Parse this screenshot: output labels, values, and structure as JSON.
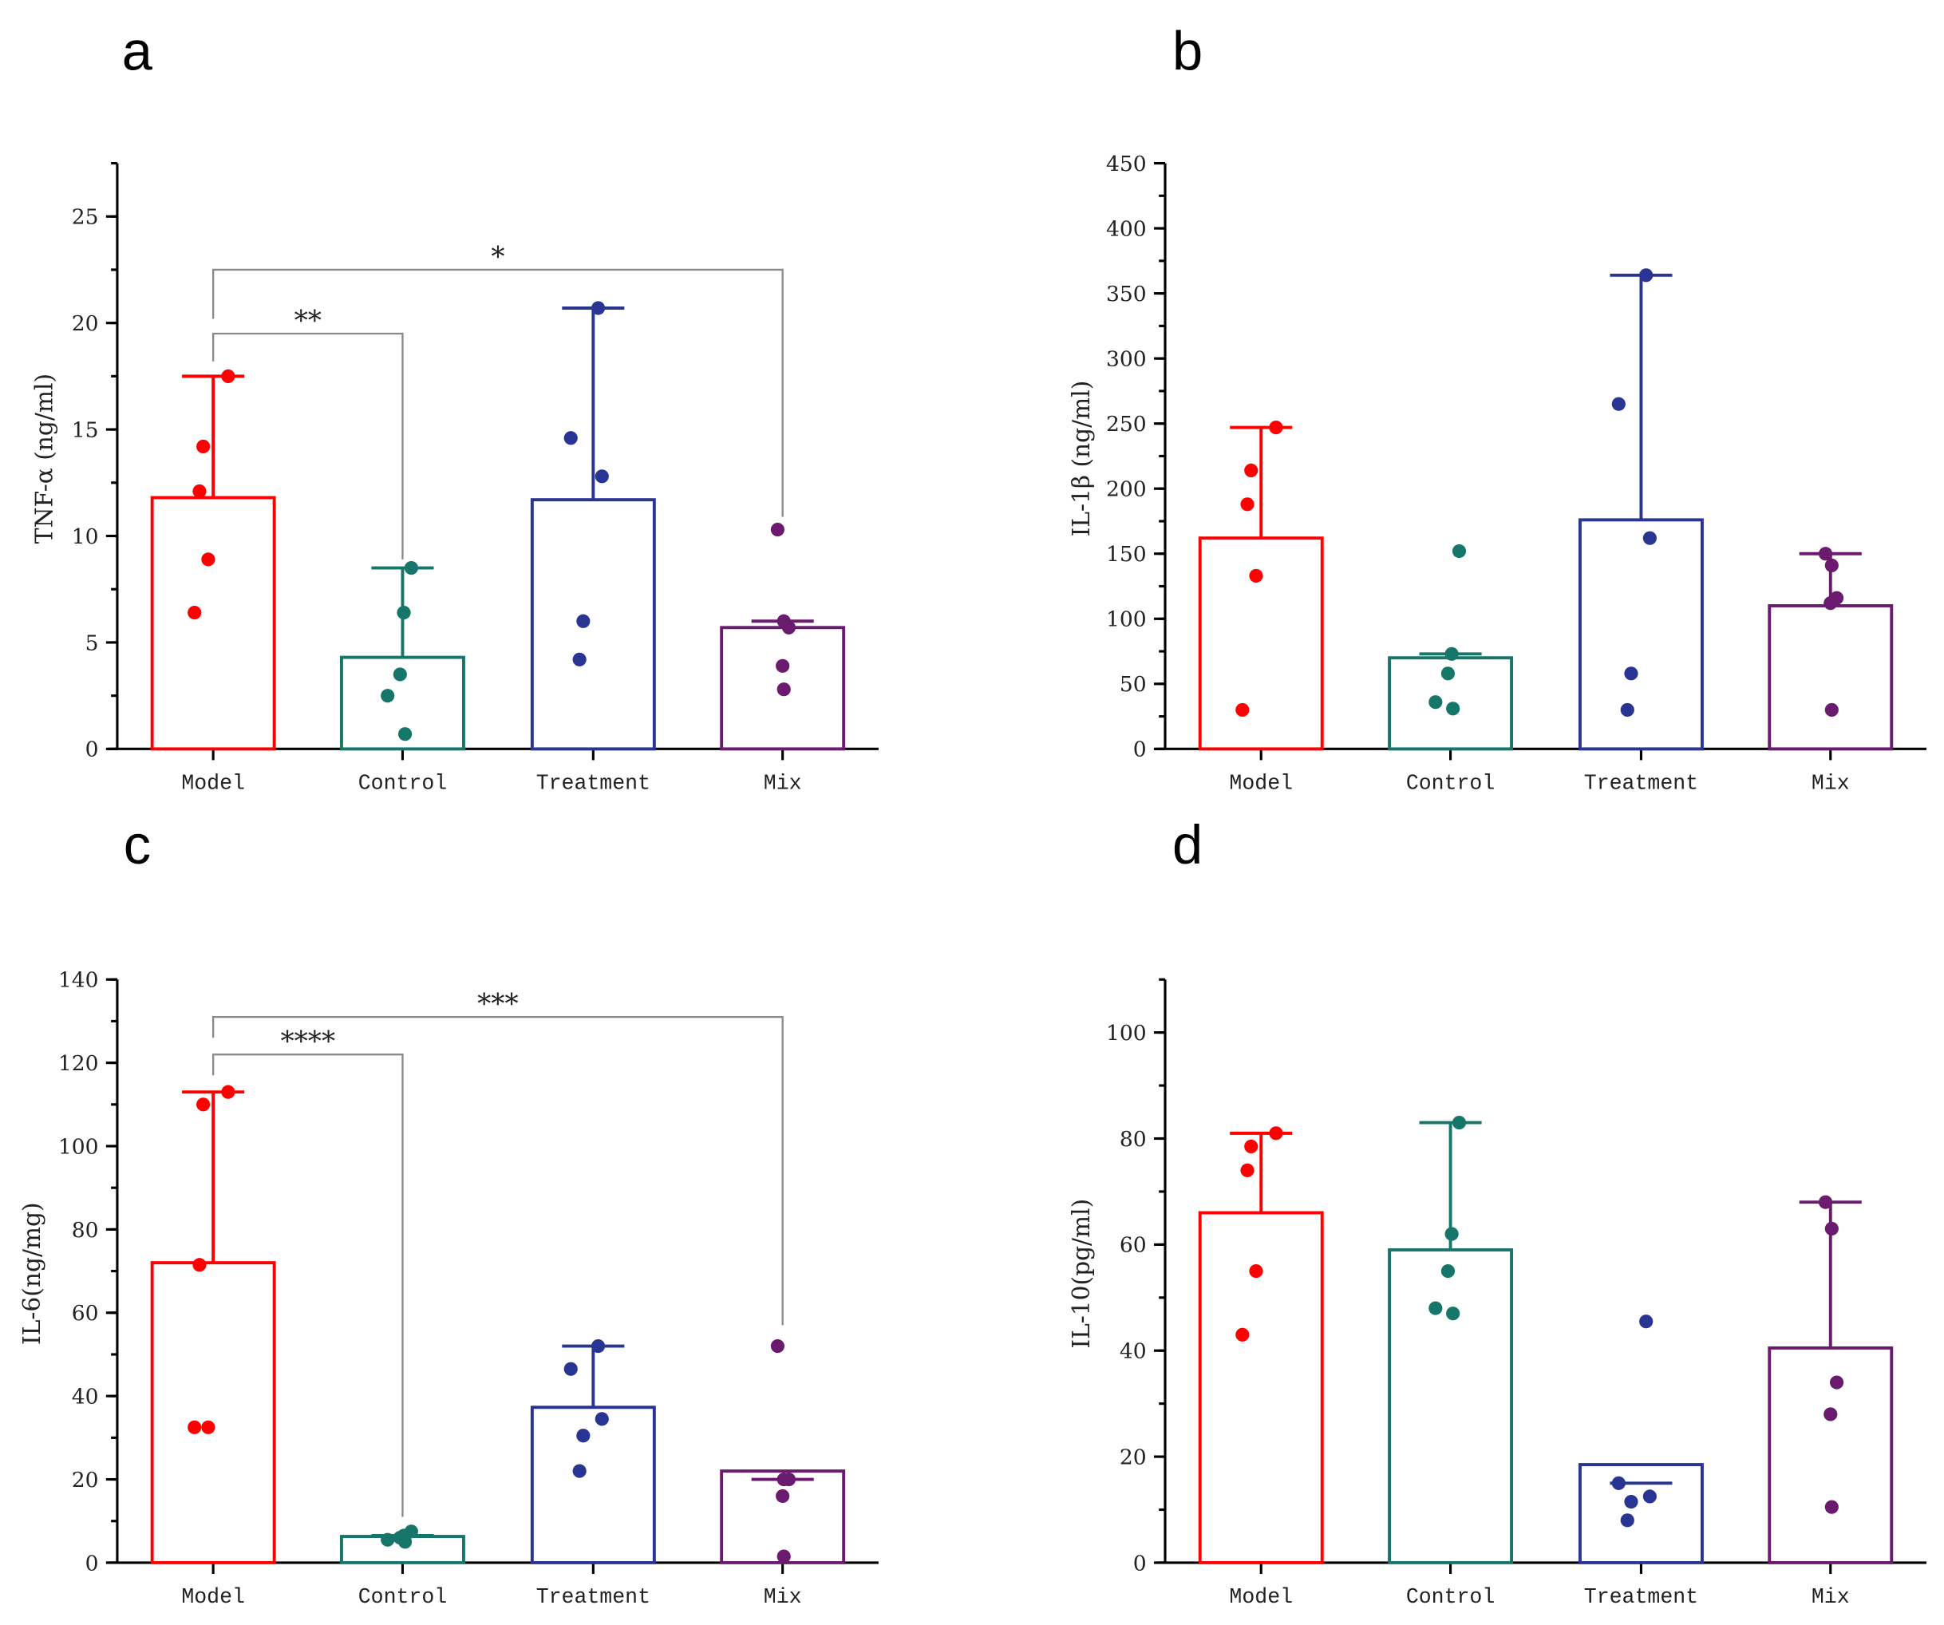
{
  "colors": {
    "Model": "#ff0000",
    "Control": "#17766a",
    "Treatment": "#283593",
    "Mix": "#6a1b6e",
    "bracket": "#8a8a8a"
  },
  "chart_data": [
    {
      "panel": "a",
      "type": "bar",
      "ylabel": "TNF-α (ng/ml)",
      "ylim": [
        0,
        27.5
      ],
      "yticks": [
        0,
        5,
        10,
        15,
        20,
        25
      ],
      "minor_step": 2.5,
      "categories": [
        "Model",
        "Control",
        "Treatment",
        "Mix"
      ],
      "means": [
        11.8,
        4.3,
        11.7,
        5.7
      ],
      "error_top": [
        17.5,
        8.5,
        20.7,
        6.0
      ],
      "points": [
        [
          17.5,
          14.2,
          12.1,
          8.9,
          6.4
        ],
        [
          8.5,
          6.4,
          3.5,
          2.5,
          0.7
        ],
        [
          20.7,
          14.6,
          12.8,
          6.0,
          4.2
        ],
        [
          10.3,
          6.0,
          5.7,
          3.9,
          2.8
        ]
      ],
      "significance": [
        {
          "from": "Model",
          "to": "Control",
          "label": "**",
          "level": 19.5,
          "left_end": 18.2,
          "right_end": 8.9
        },
        {
          "from": "Model",
          "to": "Mix",
          "label": "*",
          "level": 22.5,
          "left_end": 20.2,
          "right_end": 10.9
        }
      ]
    },
    {
      "panel": "b",
      "type": "bar",
      "ylabel": "IL-1β (ng/ml)",
      "ylim": [
        0,
        450
      ],
      "yticks": [
        0,
        50,
        100,
        150,
        200,
        250,
        300,
        350,
        400,
        450
      ],
      "minor_step": 25,
      "categories": [
        "Model",
        "Control",
        "Treatment",
        "Mix"
      ],
      "means": [
        162,
        70,
        176,
        110
      ],
      "error_top": [
        247,
        73,
        364,
        150
      ],
      "points": [
        [
          247,
          214,
          188,
          133,
          30
        ],
        [
          152,
          73,
          58,
          36,
          31
        ],
        [
          364,
          265,
          162,
          58,
          30
        ],
        [
          150,
          141,
          116,
          112,
          30
        ]
      ],
      "significance": []
    },
    {
      "panel": "c",
      "type": "bar",
      "ylabel": "IL-6(ng/mg)",
      "ylim": [
        0,
        140
      ],
      "yticks": [
        0,
        20,
        40,
        60,
        80,
        100,
        120,
        140
      ],
      "minor_step": 10,
      "categories": [
        "Model",
        "Control",
        "Treatment",
        "Mix"
      ],
      "means": [
        72,
        6.3,
        37.3,
        22
      ],
      "error_top": [
        113,
        6.5,
        52,
        20
      ],
      "points": [
        [
          113,
          110,
          71.5,
          32.5,
          32.5
        ],
        [
          7.5,
          6.5,
          6,
          5.5,
          5
        ],
        [
          52,
          46.5,
          34.5,
          30.5,
          22
        ],
        [
          52,
          20,
          20,
          16,
          1.5
        ]
      ],
      "significance": [
        {
          "from": "Model",
          "to": "Control",
          "label": "****",
          "level": 122,
          "left_end": 117,
          "right_end": 11
        },
        {
          "from": "Model",
          "to": "Mix",
          "label": "***",
          "level": 131,
          "left_end": 126,
          "right_end": 57
        }
      ]
    },
    {
      "panel": "d",
      "type": "bar",
      "ylabel": "IL-10(pg/ml)",
      "ylim": [
        0,
        110
      ],
      "yticks": [
        0,
        20,
        40,
        60,
        80,
        100
      ],
      "minor_step": 10,
      "categories": [
        "Model",
        "Control",
        "Treatment",
        "Mix"
      ],
      "means": [
        66,
        59,
        18.5,
        40.5
      ],
      "error_top": [
        81,
        83,
        15,
        68
      ],
      "points": [
        [
          81,
          78.5,
          74,
          55,
          43
        ],
        [
          83,
          62,
          55,
          48,
          47
        ],
        [
          45.5,
          15,
          12.5,
          11.5,
          8
        ],
        [
          68,
          63,
          34,
          28,
          10.5
        ]
      ],
      "significance": []
    }
  ]
}
